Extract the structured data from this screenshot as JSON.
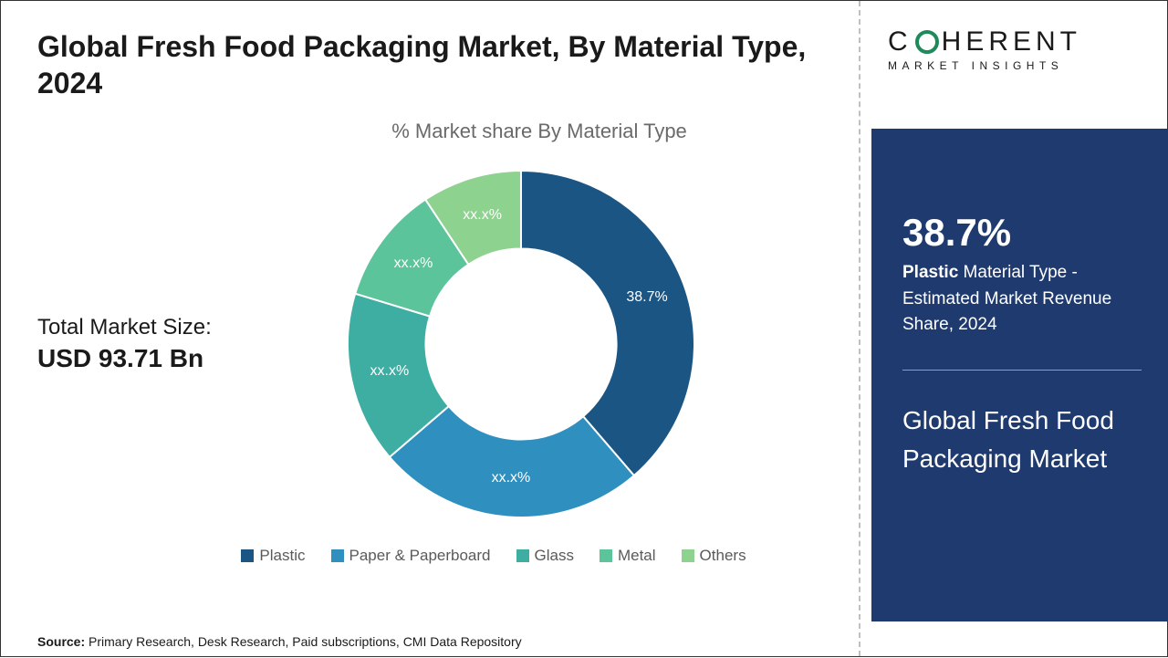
{
  "title": "Global Fresh Food Packaging Market, By Material Type, 2024",
  "subtitle": "% Market share By Material Type",
  "marketSize": {
    "label": "Total Market Size:",
    "value": "USD 93.71 Bn"
  },
  "donut": {
    "type": "donut",
    "innerRadiusRatio": 0.55,
    "background": "#ffffff",
    "slices": [
      {
        "name": "Plastic",
        "value": 38.7,
        "label": "38.7%",
        "color": "#1b5583"
      },
      {
        "name": "Paper & Paperboard",
        "value": 25.0,
        "label": "xx.x%",
        "color": "#2f8fbf"
      },
      {
        "name": "Glass",
        "value": 16.0,
        "label": "xx.x%",
        "color": "#3eaea3"
      },
      {
        "name": "Metal",
        "value": 11.0,
        "label": "xx.x%",
        "color": "#5cc49b"
      },
      {
        "name": "Others",
        "value": 9.3,
        "label": "xx.x%",
        "color": "#8ed28f"
      }
    ]
  },
  "legend": [
    {
      "label": "Plastic",
      "color": "#1b5583"
    },
    {
      "label": "Paper & Paperboard",
      "color": "#2f8fbf"
    },
    {
      "label": "Glass",
      "color": "#3eaea3"
    },
    {
      "label": "Metal",
      "color": "#5cc49b"
    },
    {
      "label": "Others",
      "color": "#8ed28f"
    }
  ],
  "source": {
    "prefix": "Source:",
    "text": " Primary Research, Desk Research, Paid subscriptions, CMI Data Repository"
  },
  "logo": {
    "line1_pre": "C",
    "line1_post": "HERENT",
    "line2": "MARKET INSIGHTS"
  },
  "highlight": {
    "pct": "38.7%",
    "bold": "Plastic",
    "desc_rest": " Material Type - Estimated Market Revenue Share, 2024",
    "marketName": "Global Fresh Food Packaging Market"
  },
  "colors": {
    "panel": "#1f3a6e",
    "text_dark": "#1a1a1a",
    "text_muted": "#6a6a6a"
  }
}
